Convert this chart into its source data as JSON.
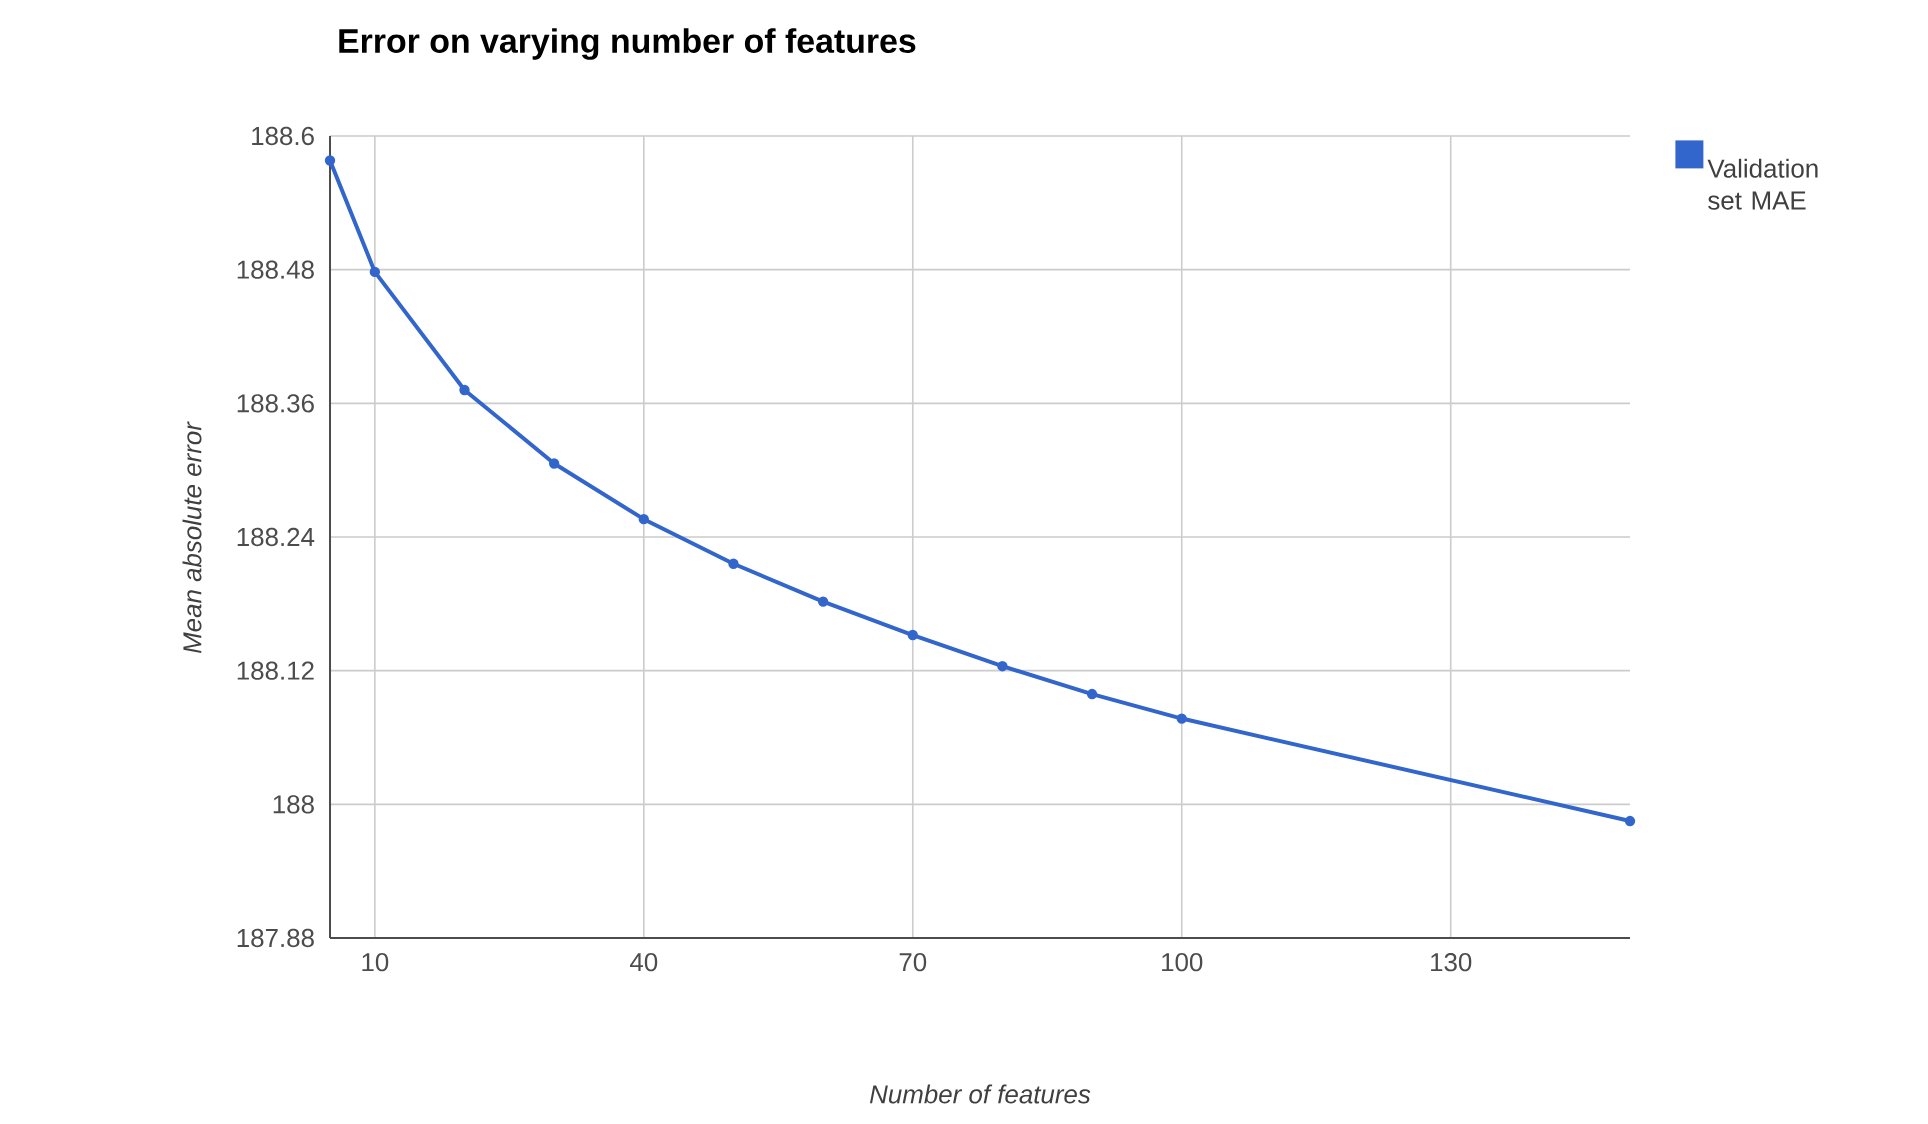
{
  "chart_data": {
    "type": "line",
    "title": "Error on varying number of features",
    "xlabel": "Number of features",
    "ylabel": "Mean absolute error",
    "x": [
      5,
      10,
      20,
      30,
      40,
      50,
      60,
      70,
      80,
      90,
      100,
      150
    ],
    "series": [
      {
        "name": "Validation set MAE",
        "color": "#3366cc",
        "values": [
          188.578,
          188.478,
          188.372,
          188.306,
          188.256,
          188.216,
          188.182,
          188.152,
          188.124,
          188.099,
          188.077,
          187.985
        ]
      }
    ],
    "xlim": [
      5,
      150
    ],
    "xticks": [
      10,
      40,
      70,
      100,
      130
    ],
    "ylim": [
      187.88,
      188.6
    ],
    "yticks": [
      187.88,
      188,
      188.12,
      188.24,
      188.36,
      188.48,
      188.6
    ],
    "grid": true,
    "legend": "top right",
    "marker": "circle",
    "line_style": "solid"
  }
}
